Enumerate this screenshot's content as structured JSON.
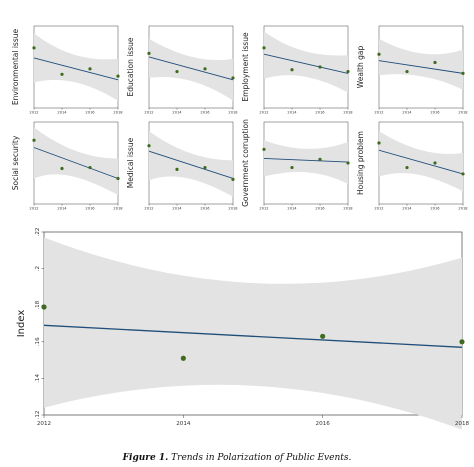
{
  "caption": {
    "label": "Figure 1.",
    "text": "Trends in Polarization of Public Events."
  },
  "colors": {
    "ci_band": "#e3e3e3",
    "fit_line": "#1f4e79",
    "point": "#3e6b1f",
    "frame": "#444444"
  },
  "chart_data": [
    {
      "type": "scatter",
      "ylabel": "Environmental issue",
      "x": [
        2012,
        2014,
        2016,
        2018
      ],
      "y": [
        0.196,
        0.167,
        0.173,
        0.165
      ],
      "fit": [
        0.185,
        0.161
      ],
      "ci_upper": [
        0.212,
        0.184
      ],
      "ci_lower": [
        0.158,
        0.138
      ],
      "xticks": [
        "2012",
        "2014",
        "2016",
        "2018"
      ],
      "grid": false
    },
    {
      "type": "scatter",
      "ylabel": "Education issue",
      "x": [
        2012,
        2014,
        2016,
        2018
      ],
      "y": [
        0.19,
        0.17,
        0.173,
        0.163
      ],
      "fit": [
        0.186,
        0.161
      ],
      "ci_upper": [
        0.206,
        0.184
      ],
      "ci_lower": [
        0.163,
        0.138
      ],
      "xticks": [
        "2012",
        "2014",
        "2016",
        "2018"
      ],
      "grid": false
    },
    {
      "type": "scatter",
      "ylabel": "Employment issue",
      "x": [
        2012,
        2014,
        2016,
        2018
      ],
      "y": [
        0.196,
        0.172,
        0.175,
        0.17
      ],
      "fit": [
        0.189,
        0.168
      ],
      "ci_upper": [
        0.214,
        0.188
      ],
      "ci_lower": [
        0.162,
        0.147
      ],
      "xticks": [
        "2012",
        "2014",
        "2016",
        "2018"
      ],
      "grid": false
    },
    {
      "type": "scatter",
      "ylabel": "Wealth gap",
      "x": [
        2012,
        2014,
        2016,
        2018
      ],
      "y": [
        0.189,
        0.17,
        0.18,
        0.168
      ],
      "fit": [
        0.182,
        0.168
      ],
      "ci_upper": [
        0.206,
        0.194
      ],
      "ci_lower": [
        0.166,
        0.15
      ],
      "xticks": [
        "2012",
        "2014",
        "2016",
        "2018"
      ],
      "grid": false
    },
    {
      "type": "scatter",
      "ylabel": "Social security",
      "x": [
        2012,
        2014,
        2016,
        2018
      ],
      "y": [
        0.2,
        0.169,
        0.17,
        0.158
      ],
      "fit": [
        0.192,
        0.158
      ],
      "ci_upper": [
        0.214,
        0.18
      ],
      "ci_lower": [
        0.158,
        0.14
      ],
      "xticks": [
        "2012",
        "2014",
        "2016",
        "2018"
      ],
      "grid": false
    },
    {
      "type": "scatter",
      "ylabel": "Medical issue",
      "x": [
        2012,
        2014,
        2016,
        2018
      ],
      "y": [
        0.194,
        0.168,
        0.17,
        0.157
      ],
      "fit": [
        0.188,
        0.158
      ],
      "ci_upper": [
        0.21,
        0.178
      ],
      "ci_lower": [
        0.156,
        0.138
      ],
      "xticks": [
        "2012",
        "2014",
        "2016",
        "2018"
      ],
      "grid": false
    },
    {
      "type": "scatter",
      "ylabel": "Government corruption",
      "x": [
        2012,
        2014,
        2016,
        2018
      ],
      "y": [
        0.19,
        0.17,
        0.179,
        0.175
      ],
      "fit": [
        0.18,
        0.176
      ],
      "ci_upper": [
        0.2,
        0.198
      ],
      "ci_lower": [
        0.16,
        0.152
      ],
      "xticks": [
        "2012",
        "2014",
        "2016",
        "2018"
      ],
      "grid": false
    },
    {
      "type": "scatter",
      "ylabel": "Housing problem",
      "x": [
        2012,
        2014,
        2016,
        2018
      ],
      "y": [
        0.197,
        0.17,
        0.175,
        0.163
      ],
      "fit": [
        0.189,
        0.163
      ],
      "ci_upper": [
        0.21,
        0.186
      ],
      "ci_lower": [
        0.16,
        0.144
      ],
      "xticks": [
        "2012",
        "2014",
        "2016",
        "2018"
      ],
      "grid": false
    },
    {
      "type": "scatter",
      "ylabel": "Index",
      "x": [
        2012,
        2014,
        2016,
        2018
      ],
      "y": [
        0.179,
        0.151,
        0.163,
        0.16
      ],
      "fit": [
        0.169,
        0.157
      ],
      "ci_upper": [
        0.217,
        0.206
      ],
      "ci_lower": [
        0.124,
        0.112
      ],
      "ylim": [
        0.12,
        0.22
      ],
      "yticks": [
        ".22",
        ".2",
        ".18",
        ".16",
        ".14",
        ".12"
      ],
      "xticks": [
        "2012",
        "2014",
        "2016",
        "2018"
      ],
      "grid": false
    }
  ]
}
